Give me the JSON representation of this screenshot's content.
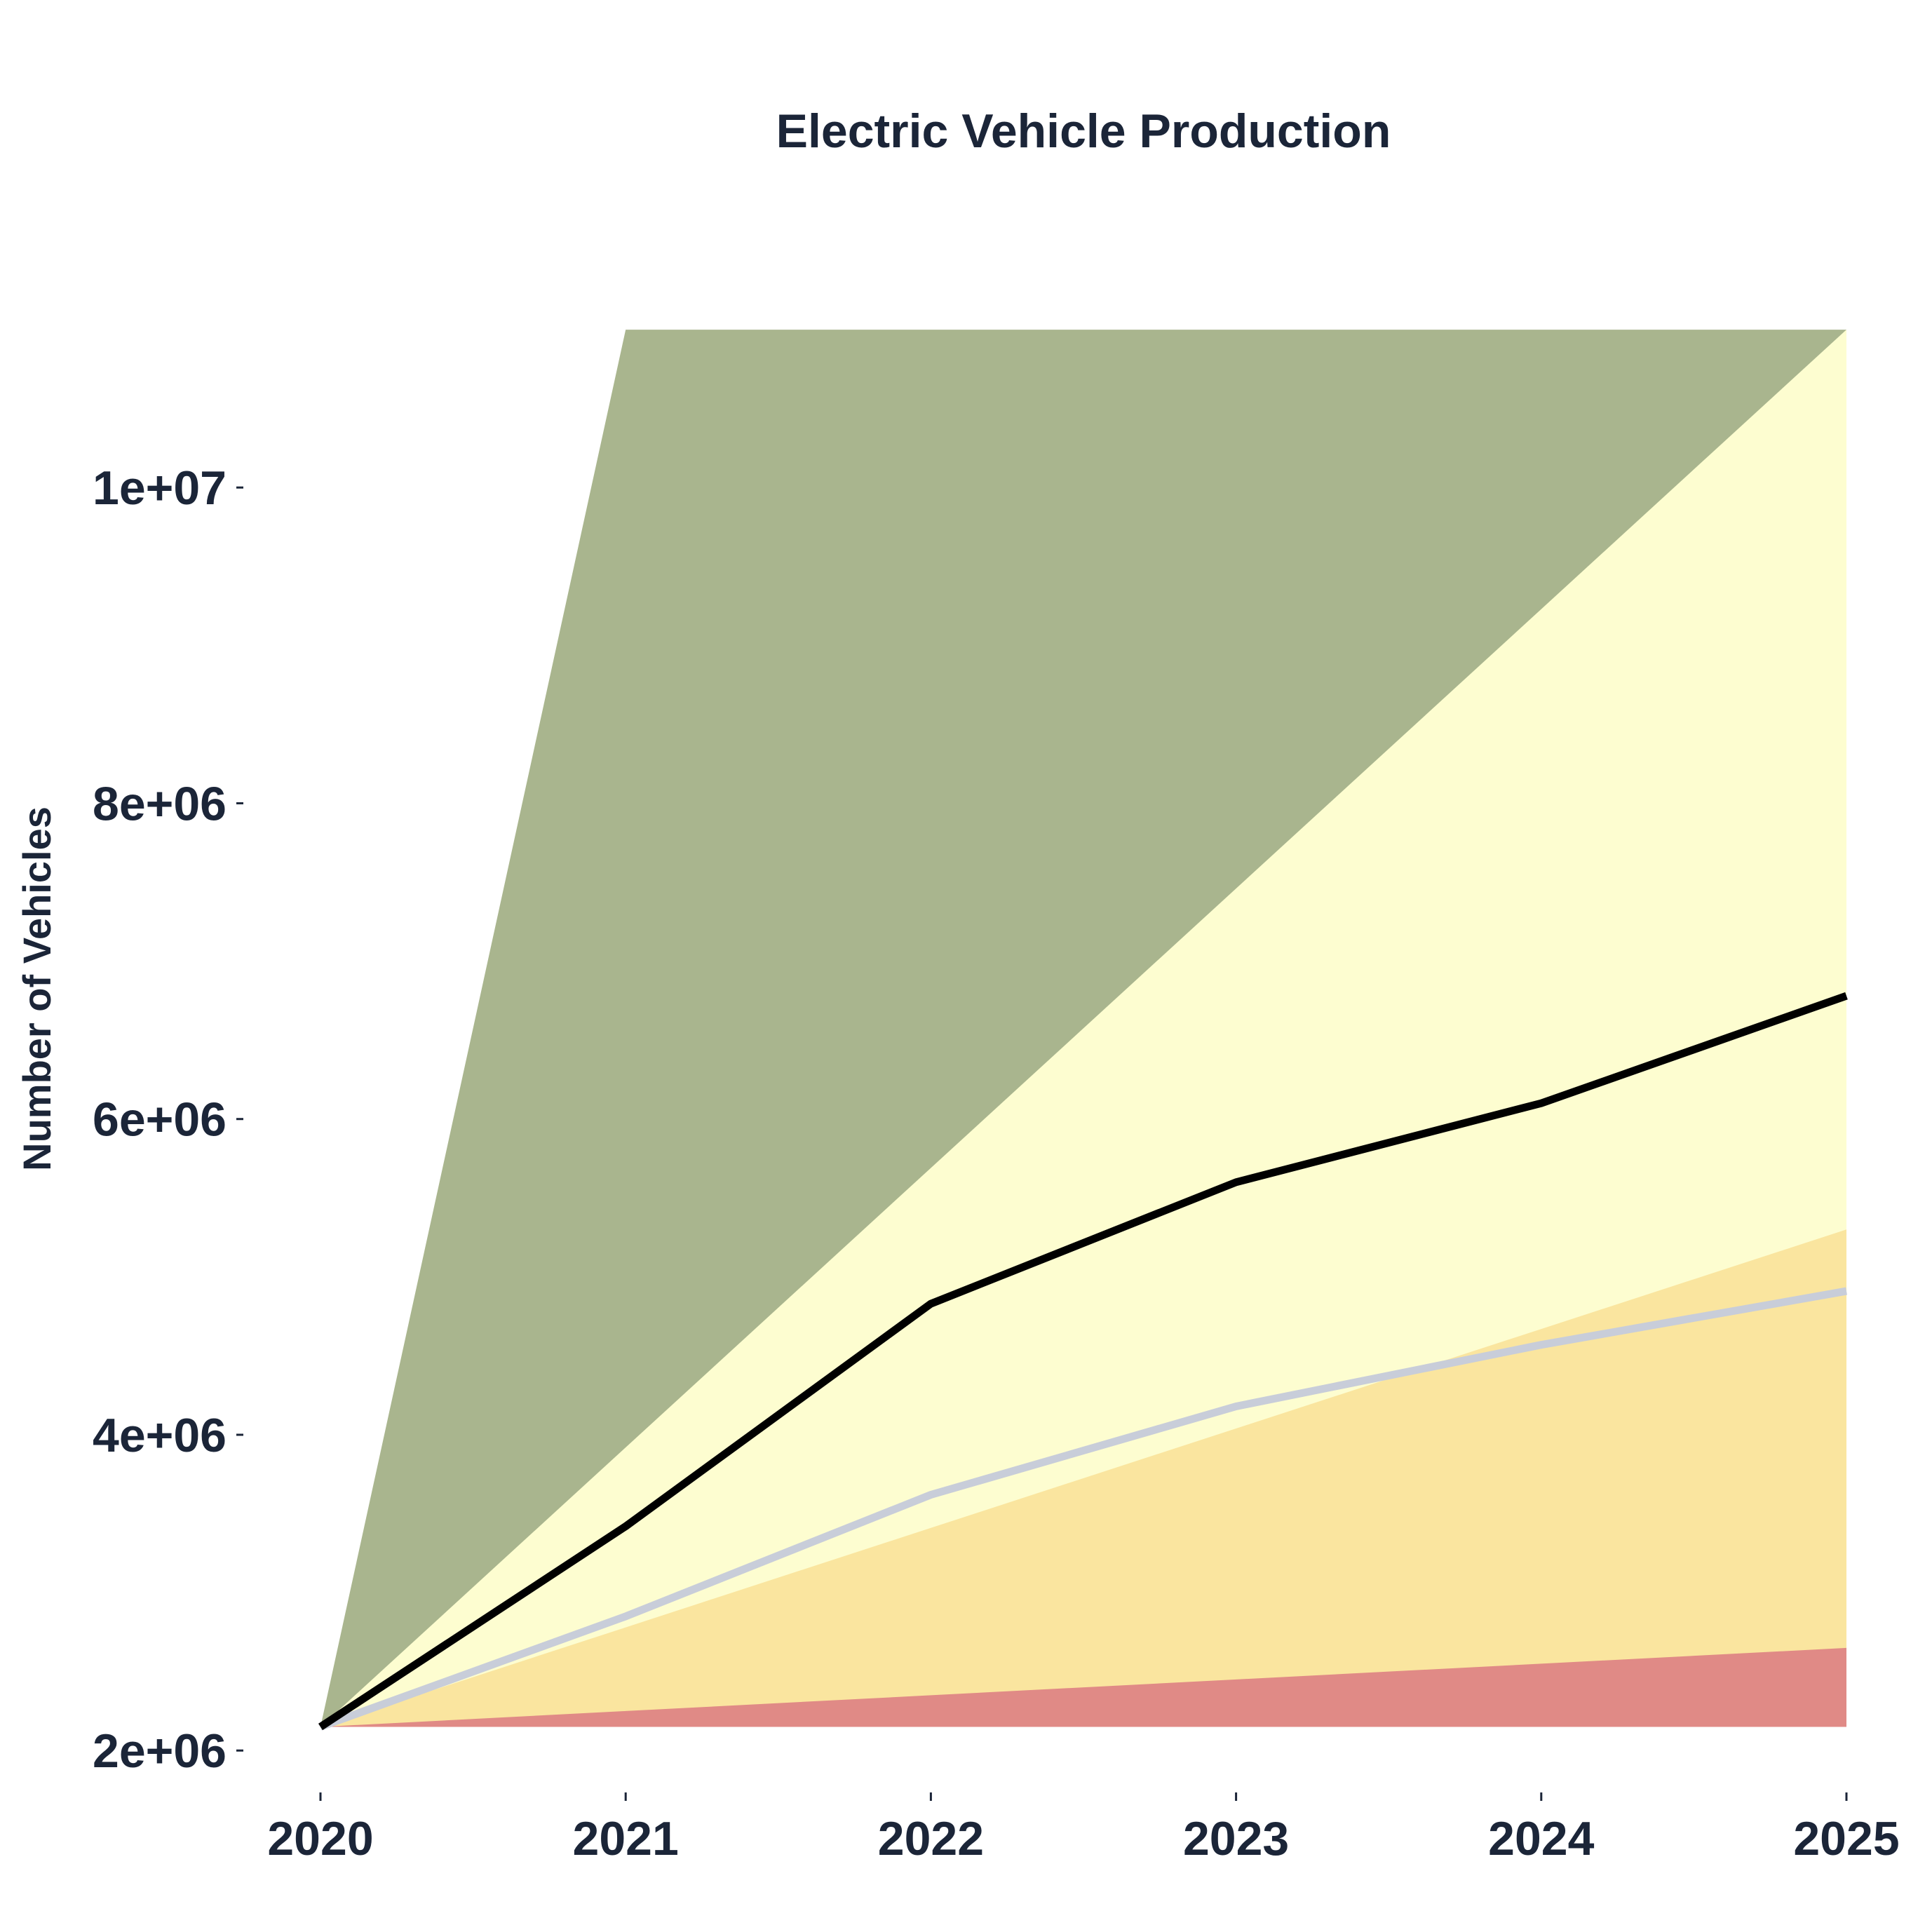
{
  "chart_data": {
    "type": "line",
    "title": "Electric Vehicle Production",
    "xlabel": "",
    "ylabel": "Number of Vehicles",
    "x": [
      2020,
      2021,
      2022,
      2023,
      2024,
      2025
    ],
    "x_tick_labels": [
      "2020",
      "2021",
      "2022",
      "2023",
      "2024",
      "2025"
    ],
    "y_ticks": [
      2000000,
      4000000,
      6000000,
      8000000,
      10000000
    ],
    "y_tick_labels": [
      "2e+06",
      "4e+06",
      "6e+06",
      "8e+06",
      "1e+07"
    ],
    "xlim": [
      2020,
      2025
    ],
    "ylim": [
      1850000,
      11600000
    ],
    "grid": false,
    "legend": "none",
    "bands": [
      {
        "lower": [
          2150000,
          2150000,
          2150000,
          2150000,
          2150000,
          2150000
        ],
        "upper": [
          2150000,
          11000000,
          11000000,
          11000000,
          11000000,
          11000000
        ],
        "color": "#a9b58e"
      },
      {
        "lower": [
          2150000,
          2150000,
          2150000,
          2150000,
          2150000,
          2150000
        ],
        "upper": [
          2150000,
          3920000,
          5690000,
          7460000,
          9230000,
          11000000
        ],
        "color": "#fdfdd0"
      },
      {
        "lower": [
          2150000,
          2150000,
          2150000,
          2150000,
          2150000,
          2150000
        ],
        "upper": [
          2150000,
          2780000,
          3410000,
          4040000,
          4670000,
          5300000
        ],
        "color": "#fae59f"
      },
      {
        "lower": [
          2150000,
          2150000,
          2150000,
          2150000,
          2150000,
          2150000
        ],
        "upper": [
          2150000,
          2250000,
          2350000,
          2450000,
          2550000,
          2650000
        ],
        "color": "#e08a86"
      }
    ],
    "series": [
      {
        "values": [
          2150000,
          3420000,
          4830000,
          5600000,
          6100000,
          6780000
        ],
        "color": "#000000",
        "width": 11
      },
      {
        "values": [
          2150000,
          2850000,
          3620000,
          4180000,
          4570000,
          4910000
        ],
        "color": "#c8cdd9",
        "width": 11
      }
    ]
  }
}
